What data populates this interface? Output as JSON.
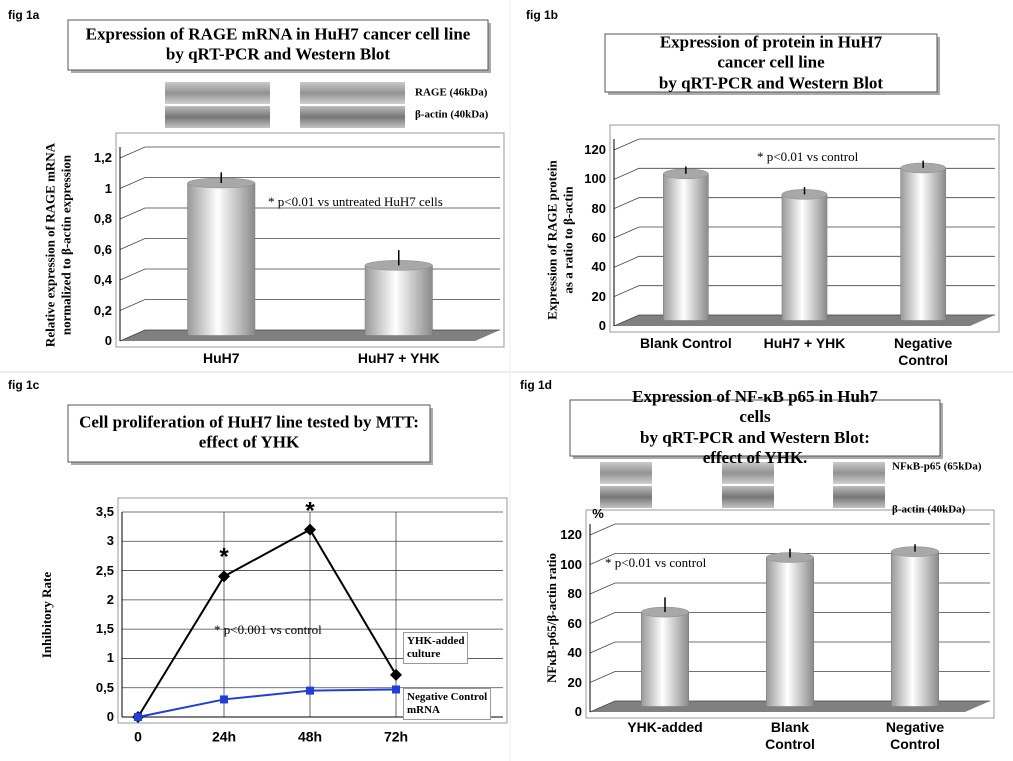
{
  "chart_data": [
    {
      "type": "bar",
      "panel": "fig 1a",
      "title": "Expression of RAGE mRNA in HuH7 cancer cell line\nby qRT-PCR and Western Blot",
      "blot_labels": [
        "RAGE (46kDa)",
        "β-actin (40kDa)"
      ],
      "y_label": "Relative expression of RAGE mRNA\nnormalized to β-actin expression",
      "categories": [
        "HuH7",
        "HuH7 + YHK"
      ],
      "values": [
        1,
        0.46
      ],
      "errors": [
        0.07,
        0.1
      ],
      "color": "#f4f4f4",
      "ylim": [
        0,
        1.2
      ],
      "yticks": [
        0,
        {
          "value": 0.2,
          "label": "0,2"
        },
        {
          "value": 0.4,
          "label": "0,4"
        },
        {
          "value": 0.6,
          "label": "0,6"
        },
        {
          "value": 0.8,
          "label": "0,8"
        },
        1,
        {
          "value": 1.2,
          "label": "1,2"
        }
      ],
      "grid": true,
      "annotation": "* p<0.01 vs untreated HuH7 cells"
    },
    {
      "type": "bar",
      "panel": "fig 1b",
      "title": "Expression of protein in HuH7 cancer cell line\nby qRT-PCR and Western Blot",
      "y_label": "Expression of RAGE protein\nas a ratio to β-actin",
      "categories": [
        "Blank Control",
        "HuH7 + YHK",
        "Negative\nControl"
      ],
      "values": [
        100,
        86,
        104
      ],
      "errors": [
        5,
        5,
        5
      ],
      "color": "#f4f4f4",
      "ylim": [
        0,
        120
      ],
      "yticks": [
        0,
        20,
        40,
        60,
        80,
        100,
        120
      ],
      "grid": true,
      "annotation": "* p<0.01 vs control"
    },
    {
      "type": "line",
      "panel": "fig 1c",
      "title": "Cell proliferation of HuH7 line tested by MTT:\neffect of YHK",
      "y_label": "Inhibitory Rate",
      "categories": [
        "0",
        "24h",
        "48h",
        "72h"
      ],
      "series": [
        {
          "name": "YHK-added\nculture",
          "color": "#000000",
          "marker": "diamond",
          "values": [
            0,
            2.4,
            3.2,
            0.72
          ]
        },
        {
          "name": "Negative Control\nmRNA",
          "color": "#1f3fd8",
          "marker": "square",
          "values": [
            0,
            0.3,
            0.45,
            0.47
          ]
        }
      ],
      "stars": [
        "*",
        "*"
      ],
      "ylim": [
        0,
        3.5
      ],
      "yticks": [
        0,
        {
          "value": 0.5,
          "label": "0,5"
        },
        1,
        {
          "value": 1.5,
          "label": "1,5"
        },
        2,
        {
          "value": 2.5,
          "label": "2,5"
        },
        3,
        {
          "value": 3.5,
          "label": "3,5"
        }
      ],
      "grid": true,
      "annotation": "* p<0.001 vs control"
    },
    {
      "type": "bar",
      "panel": "fig 1d",
      "title": "Expression of NF-κB p65 in Huh7 cells\nby qRT-PCR and Western Blot: effect of YHK.",
      "blot_labels": [
        "NFκB-p65 (65kDa)",
        "β-actin (40kDa)"
      ],
      "unit": "%",
      "y_label": "NFκB-p65/β-actin ratio",
      "categories": [
        "YHK-added",
        "Blank\nControl",
        "Negative\nControl"
      ],
      "values": [
        64,
        101,
        105
      ],
      "errors": [
        10,
        6,
        5
      ],
      "color": "#f4f4f4",
      "ylim": [
        0,
        120
      ],
      "yticks": [
        0,
        20,
        40,
        60,
        80,
        100,
        120
      ],
      "grid": true,
      "annotation": "* p<0.01 vs control"
    }
  ]
}
